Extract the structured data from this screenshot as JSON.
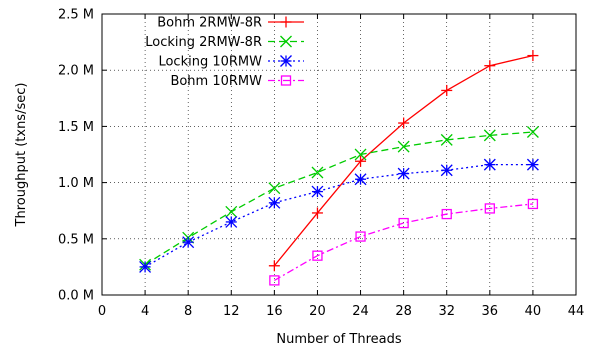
{
  "chart_data": {
    "type": "line",
    "xlabel": "Number of Threads",
    "ylabel": "Throughput (txns/sec)",
    "xlim": [
      0,
      44
    ],
    "ylim": [
      0,
      2500000
    ],
    "x_ticks": [
      0,
      4,
      8,
      12,
      16,
      20,
      24,
      28,
      32,
      36,
      40,
      44
    ],
    "y_ticks": [
      {
        "value": 0,
        "label": "0.0 M"
      },
      {
        "value": 500000,
        "label": "0.5 M"
      },
      {
        "value": 1000000,
        "label": "1.0 M"
      },
      {
        "value": 1500000,
        "label": "1.5 M"
      },
      {
        "value": 2000000,
        "label": "2.0 M"
      },
      {
        "value": 2500000,
        "label": "2.5 M"
      }
    ],
    "grid": true,
    "legend_position": "top-left",
    "series": [
      {
        "name": "Bohm  2RMW-8R",
        "color": "#ff0000",
        "marker": "plus",
        "dash": "",
        "x": [
          16,
          20,
          24,
          28,
          32,
          36,
          40
        ],
        "y": [
          260000,
          730000,
          1190000,
          1530000,
          1820000,
          2040000,
          2130000
        ]
      },
      {
        "name": "Locking 2RMW-8R",
        "color": "#00cc00",
        "marker": "cross",
        "dash": "7 4",
        "x": [
          4,
          8,
          12,
          16,
          20,
          24,
          28,
          32,
          36,
          40
        ],
        "y": [
          270000,
          510000,
          740000,
          950000,
          1090000,
          1250000,
          1320000,
          1380000,
          1420000,
          1450000
        ]
      },
      {
        "name": "Locking 10RMW",
        "color": "#0000ff",
        "marker": "star",
        "dash": "2 3",
        "x": [
          4,
          8,
          12,
          16,
          20,
          24,
          28,
          32,
          36,
          40
        ],
        "y": [
          250000,
          470000,
          650000,
          820000,
          920000,
          1030000,
          1080000,
          1110000,
          1160000,
          1160000
        ]
      },
      {
        "name": "Bohm 10RMW",
        "color": "#ff00ff",
        "marker": "square",
        "dash": "7 3 2 3",
        "x": [
          16,
          20,
          24,
          28,
          32,
          36,
          40
        ],
        "y": [
          130000,
          350000,
          520000,
          640000,
          720000,
          770000,
          810000
        ]
      }
    ]
  }
}
